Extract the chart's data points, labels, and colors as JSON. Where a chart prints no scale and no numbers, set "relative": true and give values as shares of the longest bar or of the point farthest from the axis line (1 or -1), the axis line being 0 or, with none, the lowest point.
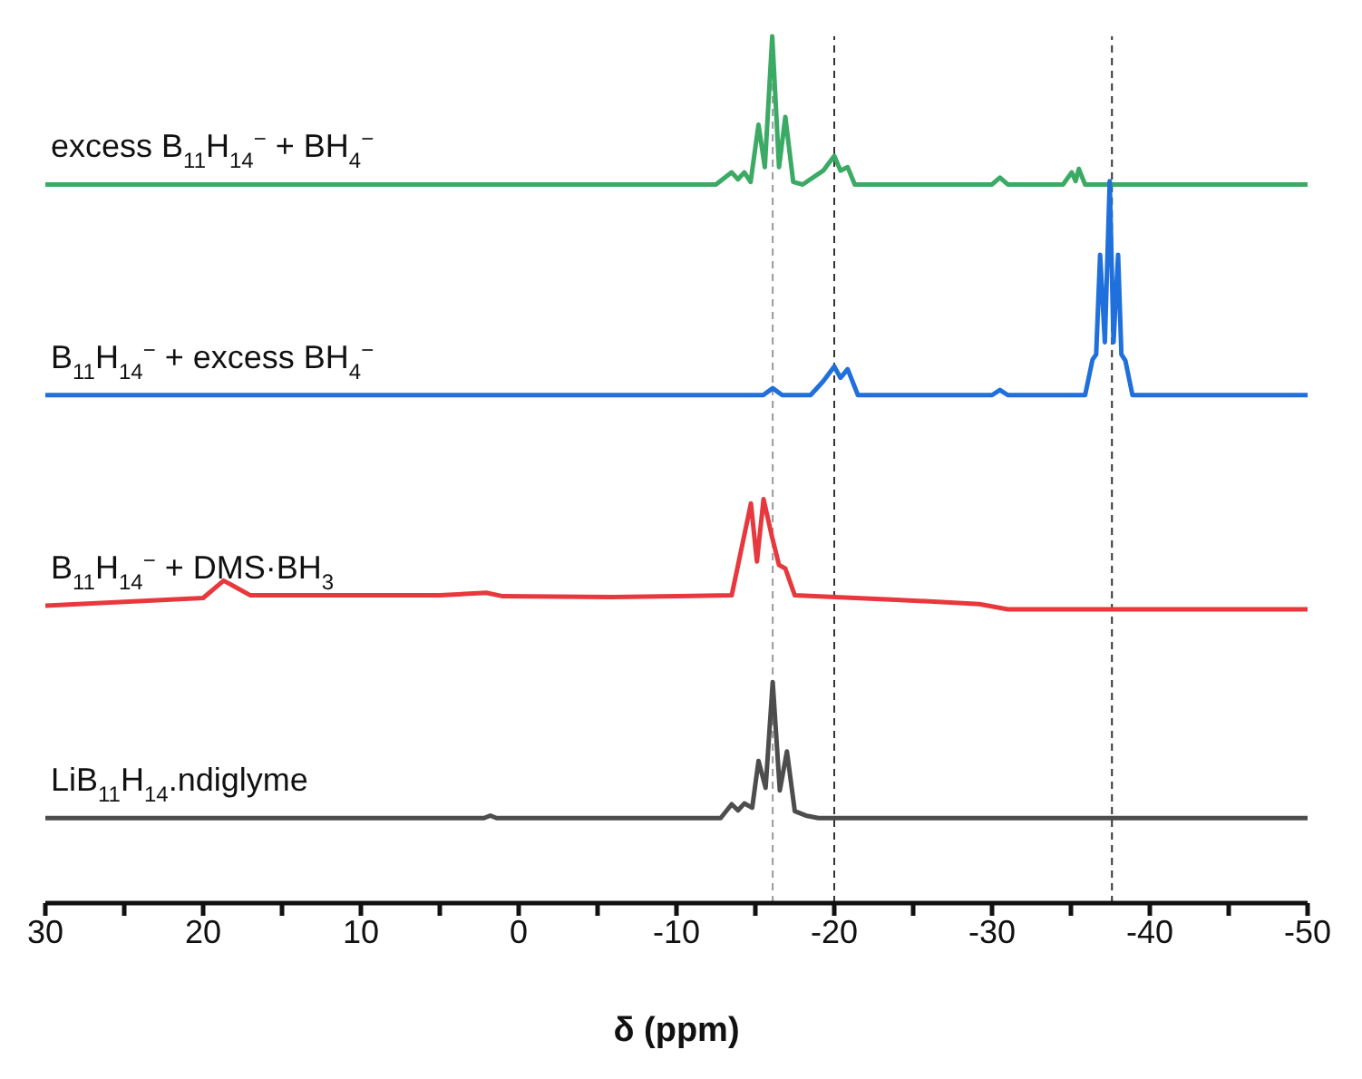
{
  "chart_data": {
    "type": "line",
    "relative": true,
    "xlabel": "δ (ppm)",
    "xlim": [
      30,
      -50
    ],
    "xticks": [
      30,
      {
        "value": 25,
        "label": null
      },
      20,
      {
        "value": 15,
        "label": null
      },
      10,
      {
        "value": 5,
        "label": null
      },
      0,
      {
        "value": -5,
        "label": null
      },
      -10,
      {
        "value": -15,
        "label": null
      },
      -20,
      {
        "value": -25,
        "label": null
      },
      -30,
      {
        "value": -35,
        "label": null
      },
      -40,
      {
        "value": -45,
        "label": null
      },
      -50
    ],
    "marker": "none",
    "line_style": "solid",
    "series": [
      {
        "name": "excess B$_{11}$H$_{14}$$^{−}$ + BH$_{4}$$^{−}$",
        "color": "#3aaa64",
        "x": [
          30,
          0,
          -12.5,
          -13.5,
          -13.9,
          -14.3,
          -14.7,
          -15.2,
          -15.6,
          -16.07,
          -16.5,
          -16.9,
          -17.4,
          -18,
          -19.3,
          -20,
          -20.4,
          -20.85,
          -21.3,
          -30,
          -30.5,
          -31,
          -34.5,
          -35.05,
          -35.3,
          -35.5,
          -35.9,
          -50
        ],
        "values": [
          0.829,
          0.829,
          0.829,
          0.843,
          0.835,
          0.843,
          0.832,
          0.898,
          0.849,
          1.0,
          0.849,
          0.907,
          0.832,
          0.829,
          0.845,
          0.862,
          0.845,
          0.849,
          0.829,
          0.829,
          0.837,
          0.829,
          0.829,
          0.843,
          0.833,
          0.847,
          0.829,
          0.829
        ]
      },
      {
        "name": "B$_{11}$H$_{14}$$^{−}$ + excess BH$_{4}$$^{−}$",
        "color": "#1f6fdc",
        "x": [
          30,
          -15.5,
          -16.1,
          -16.7,
          -18.5,
          -19.3,
          -20,
          -20.4,
          -20.85,
          -21.5,
          -30,
          -30.5,
          -31,
          -35.9,
          -36.37,
          -36.6,
          -36.85,
          -37.15,
          -37.46,
          -37.7,
          -37.99,
          -38.2,
          -38.45,
          -38.9,
          -50
        ],
        "values": [
          0.586,
          0.586,
          0.594,
          0.586,
          0.586,
          0.602,
          0.619,
          0.606,
          0.616,
          0.586,
          0.586,
          0.592,
          0.586,
          0.586,
          0.627,
          0.633,
          0.748,
          0.647,
          0.833,
          0.647,
          0.748,
          0.633,
          0.626,
          0.586,
          0.586
        ]
      },
      {
        "name": "B$_{11}$H$_{14}$$^{−}$ + DMS·BH$_{3}$",
        "color": "#e8383d",
        "x": [
          30,
          20,
          18.7,
          17,
          5,
          2.05,
          1,
          -5.9,
          -13.5,
          -14.72,
          -15.1,
          -15.52,
          -16.05,
          -16.5,
          -16.9,
          -17.5,
          -23.9,
          -29.2,
          -31,
          -50
        ],
        "values": [
          0.343,
          0.352,
          0.372,
          0.355,
          0.355,
          0.358,
          0.354,
          0.353,
          0.355,
          0.461,
          0.394,
          0.466,
          0.423,
          0.39,
          0.386,
          0.355,
          0.35,
          0.345,
          0.339,
          0.339
        ]
      },
      {
        "name": "LiB$_{11}$H$_{14}$.ndiglyme",
        "color": "#4d4d4d",
        "x": [
          30,
          2.2,
          1.8,
          1.4,
          -12.8,
          -13.5,
          -13.9,
          -14.3,
          -14.8,
          -15.2,
          -15.65,
          -16.1,
          -16.55,
          -17,
          -17.5,
          -18.2,
          -19,
          -50
        ],
        "values": [
          0.098,
          0.098,
          0.101,
          0.098,
          0.098,
          0.114,
          0.107,
          0.115,
          0.11,
          0.164,
          0.133,
          0.255,
          0.13,
          0.175,
          0.106,
          0.101,
          0.098,
          0.098
        ]
      }
    ],
    "ref_lines": [
      {
        "axis": "x",
        "value": -16.1,
        "color": "#999999",
        "line_style": "dashed"
      },
      {
        "axis": "x",
        "value": -20,
        "color": "#333333",
        "line_style": "dashed"
      },
      {
        "axis": "x",
        "value": -37.6,
        "color": "#333333",
        "line_style": "dashed"
      }
    ]
  }
}
